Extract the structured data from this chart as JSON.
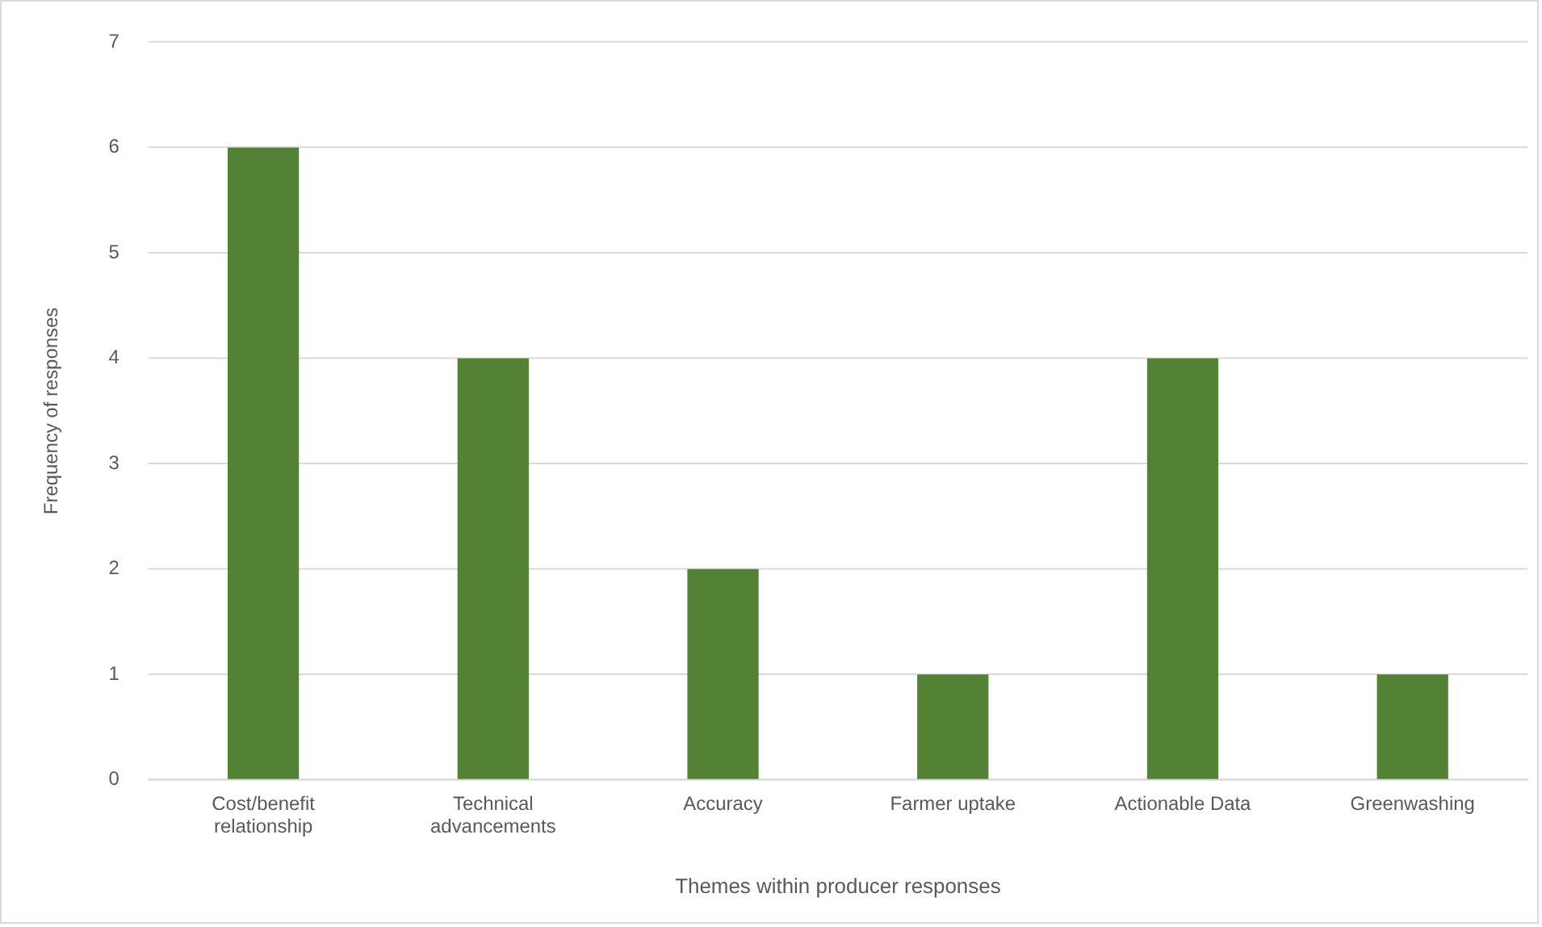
{
  "chart_data": {
    "type": "bar",
    "xlabel": "Themes within producer responses",
    "ylabel": "Frequency of responses",
    "categories": [
      "Cost/benefit relationship",
      "Technical advancements",
      "Accuracy",
      "Farmer uptake",
      "Actionable Data",
      "Greenwashing"
    ],
    "values": [
      6,
      4,
      2,
      1,
      4,
      1
    ],
    "color": "#548235",
    "ylim": [
      0,
      7
    ],
    "yticks": [
      0,
      1,
      2,
      3,
      4,
      5,
      6,
      7
    ],
    "grid": "y",
    "legend": false
  }
}
